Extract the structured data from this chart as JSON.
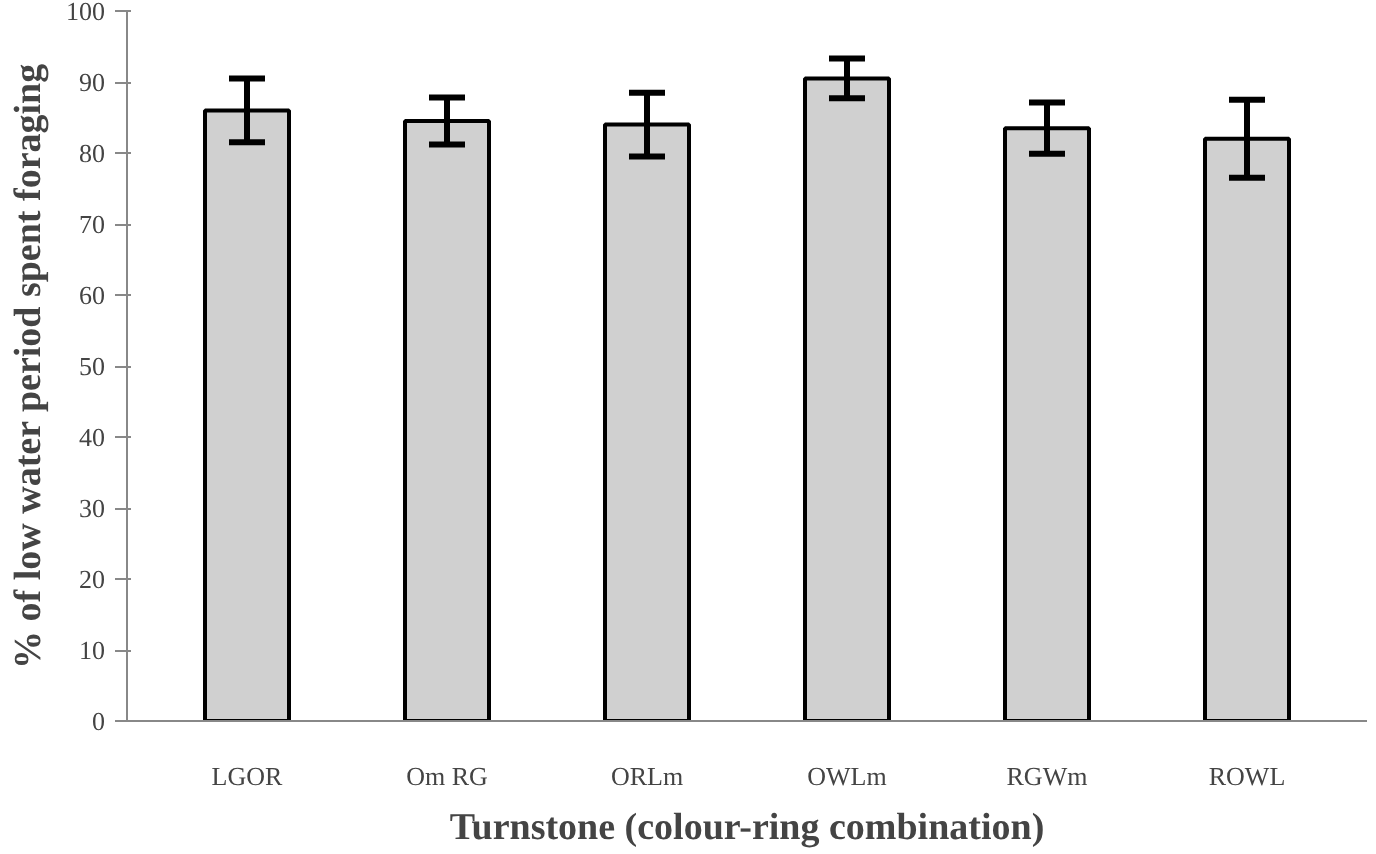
{
  "chart_data": {
    "type": "bar",
    "xlabel": "Turnstone (colour-ring combination)",
    "ylabel": "% of low water period spent foraging",
    "categories": [
      "LGOR",
      "Om RG",
      "ORLm",
      "OWLm",
      "RGWm",
      "ROWL"
    ],
    "values": [
      86,
      84.5,
      84,
      90.5,
      83.5,
      82
    ],
    "errors": [
      4.5,
      3.3,
      4.5,
      2.8,
      3.6,
      5.5
    ],
    "color": "#d0d0d0",
    "ylim": [
      0,
      100
    ],
    "yticks": [
      0,
      10,
      20,
      30,
      40,
      50,
      60,
      70,
      80,
      90,
      100
    ],
    "grid": false
  }
}
